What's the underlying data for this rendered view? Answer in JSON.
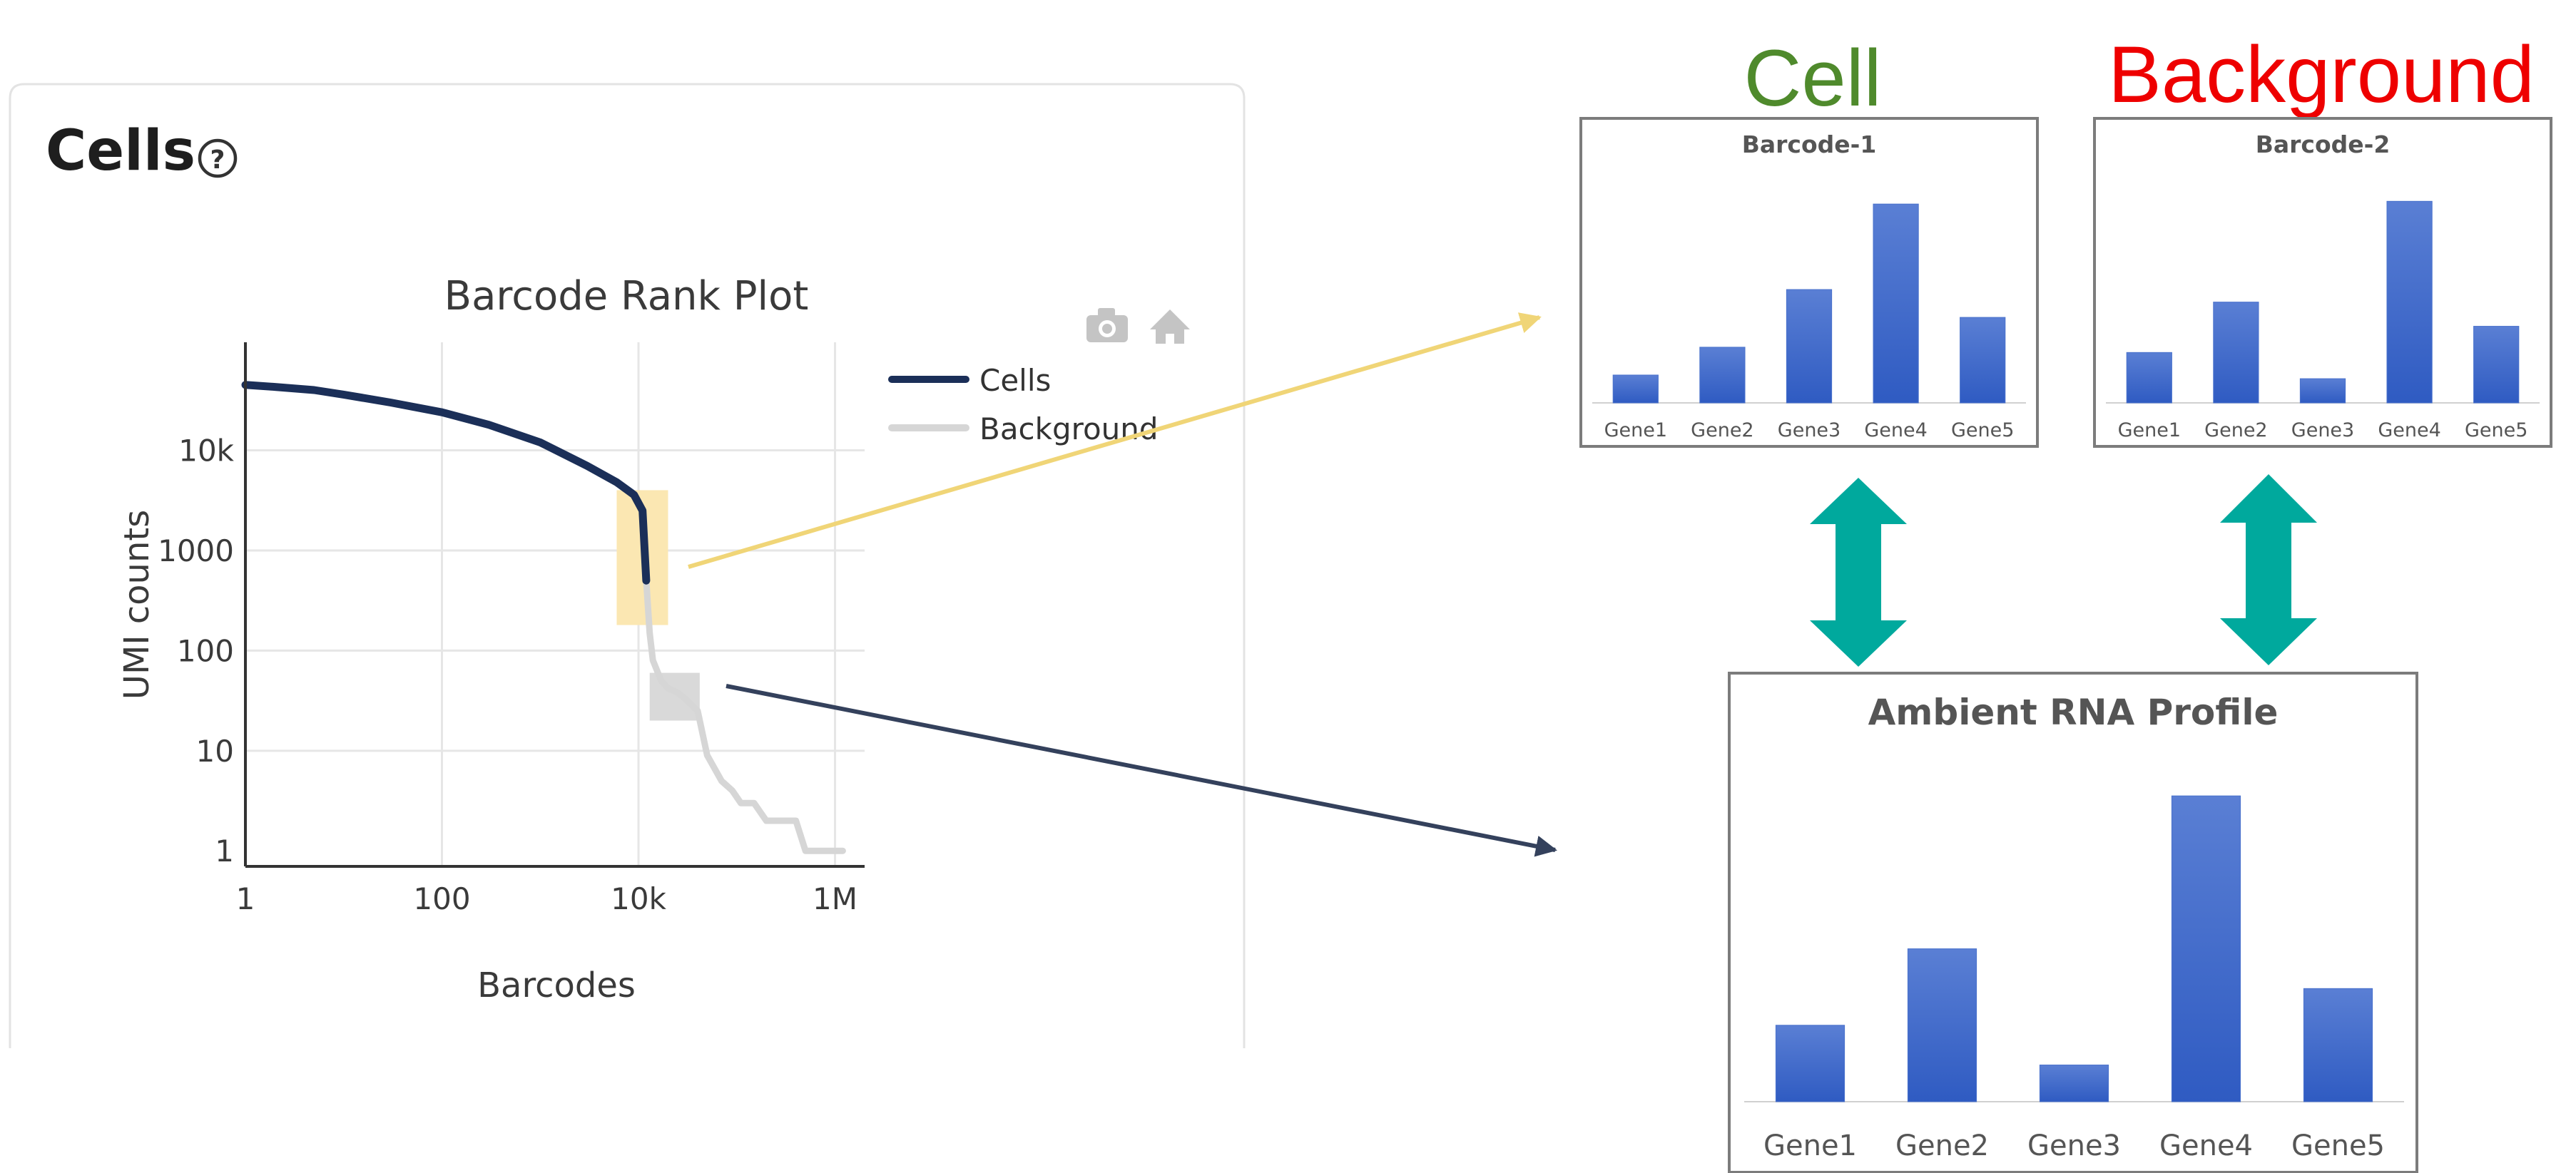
{
  "colors": {
    "cells_line": "#1b2f58",
    "background_line": "#d6d6d6",
    "highlight_cells": "#fbe7b2",
    "highlight_background": "#d9d9d9",
    "arrow_yellow": "#f0d577",
    "arrow_navy": "#34415c",
    "bar_blue": "#3d68c8",
    "teal": "#00a99d",
    "cell_title": "#4f8a2c",
    "background_title": "#ee0000",
    "panel_border": "#e3e3e3",
    "box_border": "#7c7c7c",
    "grid": "#e6e6e6",
    "toolbar_icon": "#c4c4c4"
  },
  "panel": {
    "title": "Cells",
    "help_icon": "?"
  },
  "rank_plot": {
    "title": "Barcode Rank Plot",
    "camera_icon": "camera-icon",
    "home_icon": "home-icon"
  },
  "right": {
    "cell_title": "Cell",
    "background_title": "Background"
  },
  "chart_data": [
    {
      "type": "line",
      "title": "Barcode Rank Plot",
      "xlabel": "Barcodes",
      "ylabel": "UMI counts",
      "xscale": "log",
      "yscale": "log",
      "xlim": [
        1,
        2000000
      ],
      "ylim": [
        0.7,
        120000
      ],
      "x_ticks": [
        {
          "value": 1,
          "label": "1"
        },
        {
          "value": 100,
          "label": "100"
        },
        {
          "value": 10000,
          "label": "10k"
        },
        {
          "value": 1000000,
          "label": "1M"
        }
      ],
      "y_ticks": [
        {
          "value": 1,
          "label": "1"
        },
        {
          "value": 10,
          "label": "10"
        },
        {
          "value": 100,
          "label": "100"
        },
        {
          "value": 1000,
          "label": "1000"
        },
        {
          "value": 10000,
          "label": "10k"
        }
      ],
      "grid": true,
      "legend": "top-right",
      "series": [
        {
          "name": "Cells",
          "x": [
            1,
            2,
            5,
            10,
            30,
            100,
            300,
            1000,
            3000,
            6000,
            9000,
            11000,
            12000
          ],
          "y": [
            45000,
            43000,
            40000,
            36000,
            30000,
            24000,
            18000,
            12000,
            7000,
            4800,
            3600,
            2500,
            500
          ]
        },
        {
          "name": "Background",
          "x": [
            12000,
            13000,
            14000,
            17000,
            20000,
            25000,
            30000,
            40000,
            50000,
            70000,
            90000,
            110000,
            150000,
            200000,
            300000,
            400000,
            500000,
            600000,
            700000,
            900000,
            1200000
          ],
          "y": [
            500,
            150,
            80,
            50,
            42,
            38,
            33,
            25,
            9,
            5,
            4,
            3,
            3,
            2,
            2,
            2,
            1,
            1,
            1,
            1,
            1
          ]
        }
      ]
    },
    {
      "type": "bar",
      "title": "Barcode-1",
      "categories": [
        "Gene1",
        "Gene2",
        "Gene3",
        "Gene4",
        "Gene5"
      ],
      "values": [
        14,
        28,
        57,
        100,
        43
      ],
      "ylim": [
        0,
        104
      ]
    },
    {
      "type": "bar",
      "title": "Barcode-2",
      "categories": [
        "Gene1",
        "Gene2",
        "Gene3",
        "Gene4",
        "Gene5"
      ],
      "values": [
        25,
        50,
        12,
        100,
        38
      ],
      "ylim": [
        0,
        104
      ]
    },
    {
      "type": "bar",
      "title": "Ambient RNA Profile",
      "categories": [
        "Gene1",
        "Gene2",
        "Gene3",
        "Gene4",
        "Gene5"
      ],
      "values": [
        25,
        50,
        12,
        100,
        37
      ],
      "ylim": [
        0,
        104
      ]
    }
  ]
}
